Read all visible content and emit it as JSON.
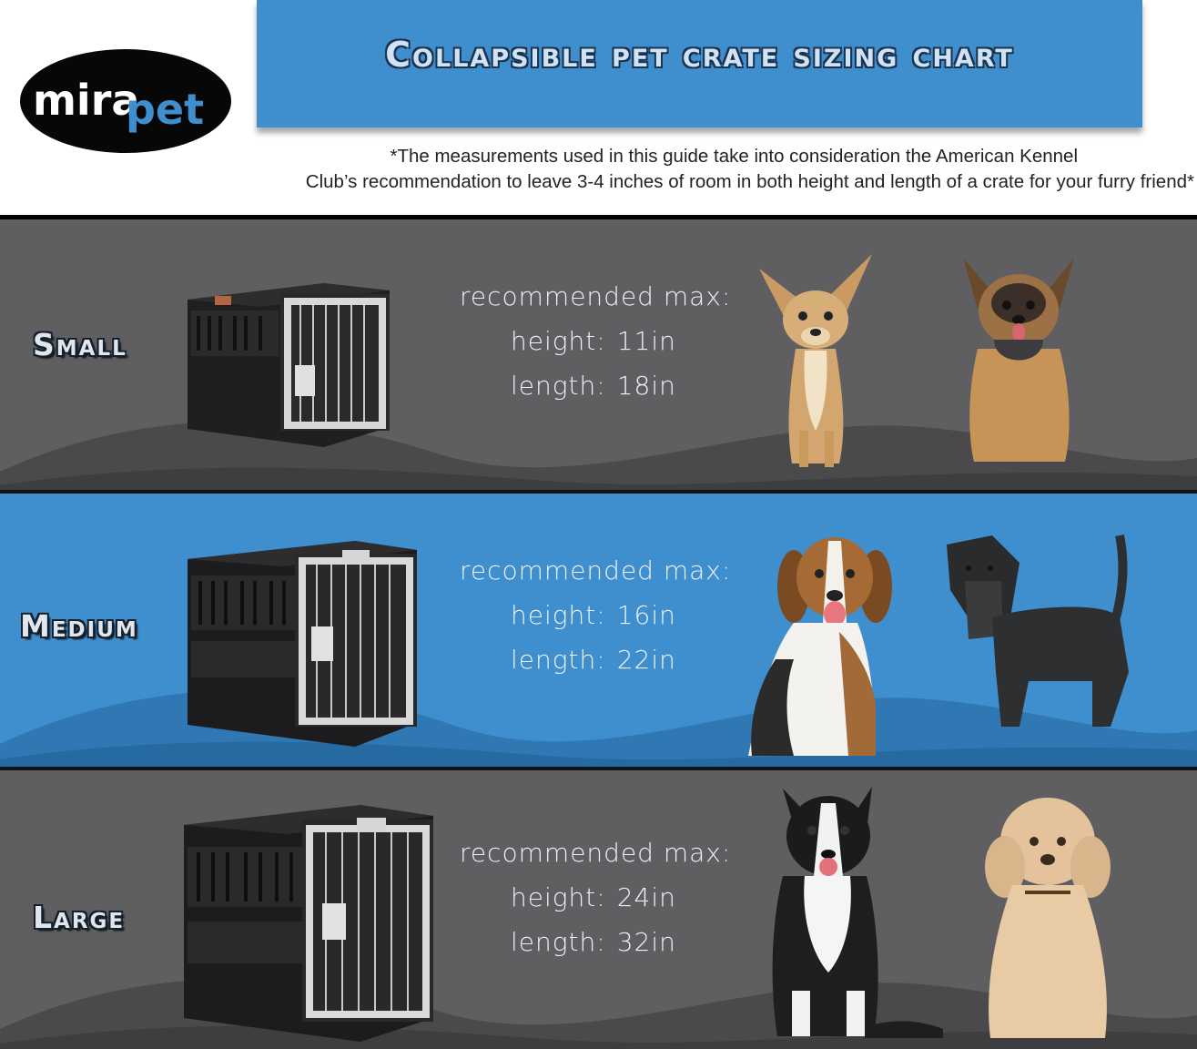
{
  "brand": {
    "logo_text_left": "mira",
    "logo_text_right": "pet"
  },
  "header": {
    "title": "Collapsible pet crate sizing chart",
    "note_line1": "*The measurements used in this guide take into consideration the American Kennel",
    "note_line2": "Club’s recommendation to leave 3-4 inches of room in both height and length of a crate for your furry friend*"
  },
  "colors": {
    "banner_blue": "#3f8fcf",
    "band_gray": "#5f5f61",
    "band_blue": "#3f8fcf"
  },
  "sizes": [
    {
      "label": "Small",
      "heading": "recommended  max:",
      "height_key": "height:",
      "height_value": "11in",
      "length_key": "length:",
      "length_value": "18in"
    },
    {
      "label": "Medium",
      "heading": "recommended  max:",
      "height_key": "height:",
      "height_value": "16in",
      "length_key": "length:",
      "length_value": "22in"
    },
    {
      "label": "Large",
      "heading": "recommended  max:",
      "height_key": "height:",
      "height_value": "24in",
      "length_key": "length:",
      "length_value": "32in"
    }
  ],
  "images": {
    "crate": "collapsible-crate-photo",
    "dogs": [
      "chihuahua-photo",
      "yorkshire-terrier-photo",
      "beagle-photo",
      "schnauzer-photo",
      "border-collie-photo",
      "labradoodle-photo"
    ]
  }
}
